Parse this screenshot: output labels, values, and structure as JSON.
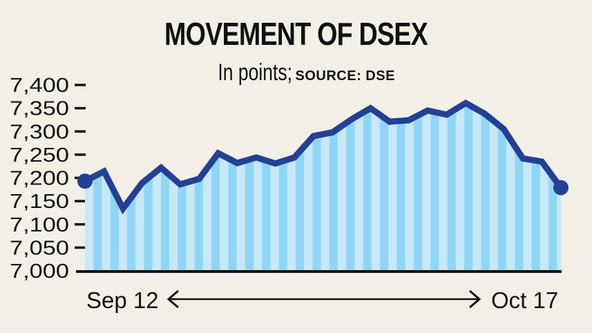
{
  "header": {
    "title": "MOVEMENT OF DSEX",
    "subtitle": "In points;",
    "source": "SOURCE: DSE"
  },
  "axis": {
    "y_ticks": [
      "7,400",
      "7,350",
      "7,300",
      "7,250",
      "7,200",
      "7,150",
      "7,100",
      "7,050",
      "7,000"
    ],
    "x_start": "Sep 12",
    "x_end": "Oct 17"
  },
  "colors": {
    "background": "#f2efe7",
    "line": "#243f94",
    "stripe_light": "#c6e8f8",
    "stripe_dark": "#8fd6f5",
    "axis": "#111111"
  },
  "chart_data": {
    "type": "area",
    "title": "MOVEMENT OF DSEX",
    "subtitle": "In points; SOURCE: DSE",
    "xlabel": "",
    "ylabel": "",
    "x_range_labels": [
      "Sep 12",
      "Oct 17"
    ],
    "ylim": [
      7000,
      7400
    ],
    "yticks": [
      7000,
      7050,
      7100,
      7150,
      7200,
      7250,
      7300,
      7350,
      7400
    ],
    "grid": false,
    "legend": null,
    "series": [
      {
        "name": "DSEX",
        "values": [
          7193,
          7214,
          7134,
          7189,
          7222,
          7186,
          7198,
          7253,
          7232,
          7244,
          7231,
          7244,
          7290,
          7298,
          7326,
          7350,
          7321,
          7324,
          7345,
          7336,
          7361,
          7338,
          7305,
          7242,
          7235,
          7179
        ]
      }
    ],
    "annotations": [
      "start marker at Sep 12",
      "end marker at Oct 17",
      "double-headed arrow between Sep 12 and Oct 17"
    ]
  }
}
